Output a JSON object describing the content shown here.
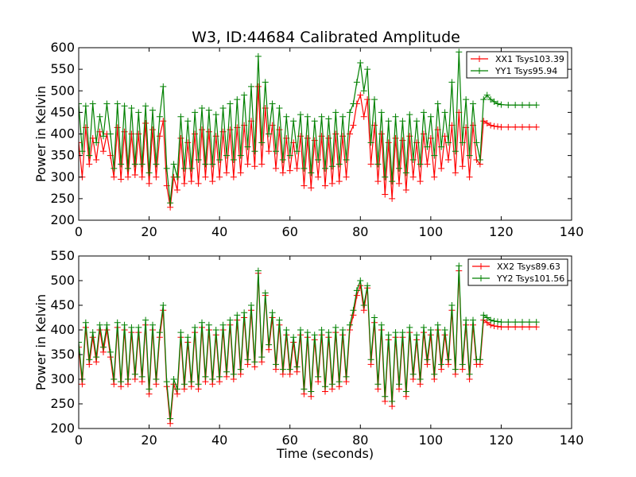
{
  "title": "W3, ID:44684 Calibrated Amplitude",
  "colors": {
    "red": "#ff0000",
    "green": "#008000",
    "frame": "#000000"
  },
  "chart_data": [
    {
      "type": "line",
      "xlabel": "",
      "ylabel": "Power in Kelvin",
      "xlim": [
        0,
        140
      ],
      "ylim": [
        200,
        600
      ],
      "xticks": [
        "0",
        "20",
        "40",
        "60",
        "80",
        "100",
        "120",
        "140"
      ],
      "yticks": [
        "200",
        "250",
        "300",
        "350",
        "400",
        "450",
        "500",
        "550",
        "600"
      ],
      "grid": false,
      "legend_position": "top-right",
      "series": [
        {
          "name": "XX1 Tsys103.39",
          "color": "#ff0000",
          "marker": "+",
          "x": [
            0,
            1,
            2,
            3,
            4,
            5,
            6,
            7,
            8,
            9,
            10,
            11,
            12,
            13,
            14,
            15,
            16,
            17,
            18,
            19,
            20,
            21,
            22,
            23,
            24,
            25,
            26,
            27,
            28,
            29,
            30,
            31,
            32,
            33,
            34,
            35,
            36,
            37,
            38,
            39,
            40,
            41,
            42,
            43,
            44,
            45,
            46,
            47,
            48,
            49,
            50,
            51,
            52,
            53,
            54,
            55,
            56,
            57,
            58,
            59,
            60,
            61,
            62,
            63,
            64,
            65,
            66,
            67,
            68,
            69,
            70,
            71,
            72,
            73,
            74,
            75,
            76,
            77,
            78,
            79,
            80,
            81,
            82,
            83,
            84,
            85,
            86,
            87,
            88,
            89,
            90,
            91,
            92,
            93,
            94,
            95,
            96,
            97,
            98,
            99,
            100,
            101,
            102,
            103,
            104,
            105,
            106,
            107,
            108,
            109,
            110,
            111,
            112,
            113,
            114,
            115,
            116,
            117,
            118,
            119,
            120,
            122,
            124,
            126,
            128,
            130
          ],
          "y": [
            380,
            300,
            415,
            330,
            390,
            340,
            405,
            360,
            400,
            350,
            300,
            415,
            295,
            405,
            300,
            400,
            305,
            400,
            300,
            425,
            285,
            410,
            300,
            395,
            430,
            280,
            230,
            300,
            270,
            390,
            285,
            380,
            290,
            400,
            285,
            410,
            300,
            405,
            290,
            395,
            300,
            405,
            310,
            410,
            300,
            415,
            310,
            420,
            330,
            430,
            325,
            510,
            330,
            460,
            360,
            420,
            320,
            410,
            310,
            390,
            315,
            380,
            320,
            395,
            280,
            390,
            275,
            385,
            300,
            395,
            280,
            390,
            285,
            400,
            290,
            395,
            300,
            400,
            420,
            470,
            490,
            440,
            480,
            330,
            420,
            290,
            400,
            260,
            380,
            250,
            390,
            285,
            385,
            270,
            395,
            300,
            380,
            290,
            400,
            330,
            390,
            300,
            410,
            320,
            395,
            340,
            420,
            310,
            450,
            325,
            415,
            300,
            420,
            340,
            330,
            430,
            425,
            420,
            418,
            417,
            416,
            416,
            416,
            416,
            416,
            416
          ]
        },
        {
          "name": "YY1 Tsys95.94",
          "color": "#008000",
          "marker": "+",
          "x": [
            0,
            1,
            2,
            3,
            4,
            5,
            6,
            7,
            8,
            9,
            10,
            11,
            12,
            13,
            14,
            15,
            16,
            17,
            18,
            19,
            20,
            21,
            22,
            23,
            24,
            25,
            26,
            27,
            28,
            29,
            30,
            31,
            32,
            33,
            34,
            35,
            36,
            37,
            38,
            39,
            40,
            41,
            42,
            43,
            44,
            45,
            46,
            47,
            48,
            49,
            50,
            51,
            52,
            53,
            54,
            55,
            56,
            57,
            58,
            59,
            60,
            61,
            62,
            63,
            64,
            65,
            66,
            67,
            68,
            69,
            70,
            71,
            72,
            73,
            74,
            75,
            76,
            77,
            78,
            79,
            80,
            81,
            82,
            83,
            84,
            85,
            86,
            87,
            88,
            89,
            90,
            91,
            92,
            93,
            94,
            95,
            96,
            97,
            98,
            99,
            100,
            101,
            102,
            103,
            104,
            105,
            106,
            107,
            108,
            109,
            110,
            111,
            112,
            113,
            114,
            115,
            116,
            117,
            118,
            119,
            120,
            122,
            124,
            126,
            128,
            130
          ],
          "y": [
            470,
            360,
            465,
            350,
            470,
            380,
            440,
            395,
            470,
            400,
            320,
            470,
            330,
            465,
            320,
            460,
            330,
            450,
            330,
            465,
            310,
            455,
            330,
            440,
            510,
            320,
            240,
            330,
            300,
            440,
            320,
            430,
            320,
            450,
            340,
            460,
            330,
            455,
            330,
            445,
            340,
            460,
            350,
            470,
            340,
            480,
            350,
            490,
            370,
            510,
            360,
            580,
            380,
            520,
            400,
            470,
            360,
            460,
            340,
            440,
            350,
            430,
            360,
            445,
            320,
            440,
            310,
            430,
            340,
            440,
            320,
            435,
            325,
            450,
            330,
            440,
            340,
            450,
            470,
            520,
            565,
            500,
            550,
            380,
            480,
            330,
            450,
            300,
            430,
            290,
            440,
            320,
            430,
            310,
            445,
            340,
            430,
            330,
            450,
            370,
            440,
            350,
            470,
            370,
            450,
            380,
            520,
            360,
            590,
            380,
            480,
            350,
            470,
            380,
            340,
            480,
            490,
            480,
            475,
            470,
            468,
            467,
            467,
            467,
            467,
            467
          ]
        }
      ]
    },
    {
      "type": "line",
      "xlabel": "Time (seconds)",
      "ylabel": "Power in Kelvin",
      "xlim": [
        0,
        140
      ],
      "ylim": [
        200,
        550
      ],
      "xticks": [
        "0",
        "20",
        "40",
        "60",
        "80",
        "100",
        "120",
        "140"
      ],
      "yticks": [
        "200",
        "250",
        "300",
        "350",
        "400",
        "450",
        "500",
        "550"
      ],
      "grid": false,
      "legend_position": "top-right",
      "series": [
        {
          "name": "XX2 Tsys89.63",
          "color": "#ff0000",
          "marker": "+",
          "x": [
            0,
            1,
            2,
            3,
            4,
            5,
            6,
            7,
            8,
            9,
            10,
            11,
            12,
            13,
            14,
            15,
            16,
            17,
            18,
            19,
            20,
            21,
            22,
            23,
            24,
            25,
            26,
            27,
            28,
            29,
            30,
            31,
            32,
            33,
            34,
            35,
            36,
            37,
            38,
            39,
            40,
            41,
            42,
            43,
            44,
            45,
            46,
            47,
            48,
            49,
            50,
            51,
            52,
            53,
            54,
            55,
            56,
            57,
            58,
            59,
            60,
            61,
            62,
            63,
            64,
            65,
            66,
            67,
            68,
            69,
            70,
            71,
            72,
            73,
            74,
            75,
            76,
            77,
            78,
            79,
            80,
            81,
            82,
            83,
            84,
            85,
            86,
            87,
            88,
            89,
            90,
            91,
            92,
            93,
            94,
            95,
            96,
            97,
            98,
            99,
            100,
            101,
            102,
            103,
            104,
            105,
            106,
            107,
            108,
            109,
            110,
            111,
            112,
            113,
            114,
            115,
            116,
            117,
            118,
            119,
            120,
            122,
            124,
            126,
            128,
            130
          ],
          "y": [
            365,
            290,
            405,
            330,
            385,
            335,
            400,
            355,
            400,
            345,
            290,
            405,
            285,
            400,
            290,
            395,
            300,
            395,
            295,
            410,
            270,
            400,
            290,
            385,
            440,
            285,
            210,
            290,
            270,
            385,
            280,
            375,
            285,
            395,
            280,
            405,
            295,
            400,
            290,
            390,
            295,
            400,
            305,
            410,
            300,
            420,
            310,
            425,
            330,
            440,
            325,
            515,
            335,
            470,
            360,
            425,
            320,
            410,
            310,
            390,
            310,
            375,
            315,
            390,
            270,
            385,
            265,
            380,
            295,
            390,
            275,
            385,
            280,
            395,
            285,
            390,
            295,
            400,
            430,
            470,
            490,
            440,
            485,
            330,
            415,
            280,
            400,
            255,
            380,
            245,
            385,
            280,
            385,
            265,
            395,
            300,
            380,
            290,
            395,
            330,
            390,
            300,
            400,
            320,
            390,
            330,
            440,
            310,
            520,
            320,
            410,
            300,
            410,
            330,
            330,
            420,
            415,
            410,
            408,
            407,
            406,
            406,
            406,
            406,
            406,
            406
          ]
        },
        {
          "name": "YY2 Tsys101.56",
          "color": "#008000",
          "marker": "+",
          "x": [
            0,
            1,
            2,
            3,
            4,
            5,
            6,
            7,
            8,
            9,
            10,
            11,
            12,
            13,
            14,
            15,
            16,
            17,
            18,
            19,
            20,
            21,
            22,
            23,
            24,
            25,
            26,
            27,
            28,
            29,
            30,
            31,
            32,
            33,
            34,
            35,
            36,
            37,
            38,
            39,
            40,
            41,
            42,
            43,
            44,
            45,
            46,
            47,
            48,
            49,
            50,
            51,
            52,
            53,
            54,
            55,
            56,
            57,
            58,
            59,
            60,
            61,
            62,
            63,
            64,
            65,
            66,
            67,
            68,
            69,
            70,
            71,
            72,
            73,
            74,
            75,
            76,
            77,
            78,
            79,
            80,
            81,
            82,
            83,
            84,
            85,
            86,
            87,
            88,
            89,
            90,
            91,
            92,
            93,
            94,
            95,
            96,
            97,
            98,
            99,
            100,
            101,
            102,
            103,
            104,
            105,
            106,
            107,
            108,
            109,
            110,
            111,
            112,
            113,
            114,
            115,
            116,
            117,
            118,
            119,
            120,
            122,
            124,
            126,
            128,
            130
          ],
          "y": [
            375,
            300,
            415,
            340,
            395,
            345,
            410,
            365,
            410,
            355,
            300,
            415,
            295,
            410,
            300,
            405,
            310,
            405,
            305,
            420,
            280,
            410,
            300,
            395,
            450,
            295,
            220,
            300,
            280,
            395,
            290,
            385,
            295,
            405,
            290,
            415,
            305,
            410,
            300,
            400,
            305,
            410,
            315,
            420,
            310,
            430,
            320,
            435,
            340,
            450,
            335,
            520,
            345,
            475,
            370,
            435,
            330,
            420,
            320,
            400,
            320,
            385,
            325,
            400,
            280,
            395,
            275,
            390,
            305,
            400,
            285,
            395,
            290,
            405,
            295,
            400,
            305,
            410,
            440,
            480,
            500,
            450,
            490,
            340,
            425,
            290,
            410,
            265,
            390,
            255,
            395,
            290,
            395,
            275,
            405,
            310,
            390,
            300,
            405,
            340,
            400,
            310,
            410,
            330,
            400,
            340,
            450,
            320,
            530,
            330,
            420,
            310,
            420,
            340,
            340,
            430,
            425,
            420,
            418,
            417,
            416,
            416,
            416,
            416,
            416,
            416
          ]
        }
      ]
    }
  ]
}
